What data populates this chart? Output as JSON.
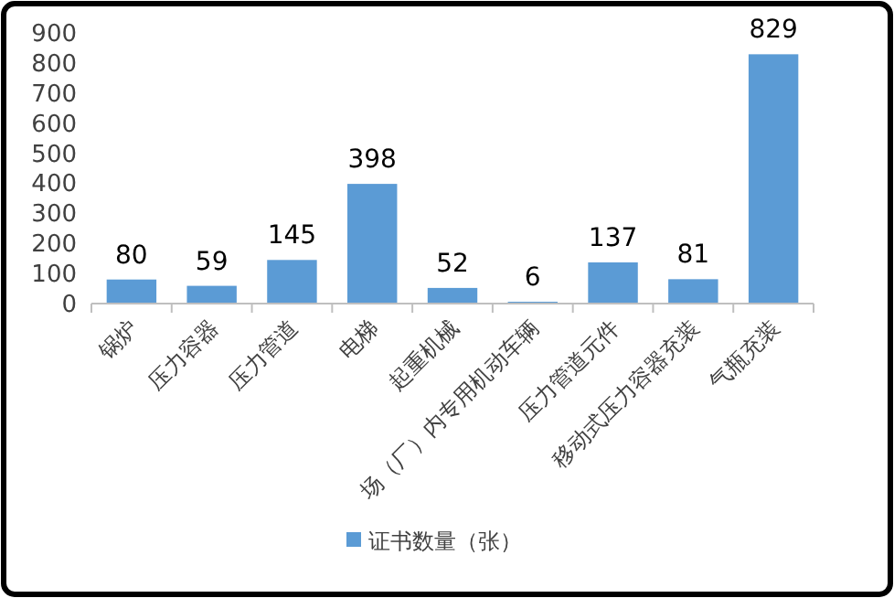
{
  "chart_data": {
    "type": "bar",
    "categories": [
      "锅炉",
      "压力容器",
      "压力管道",
      "电梯",
      "起重机械",
      "场（厂）内专用机动车辆",
      "压力管道元件",
      "移动式压力容器充装",
      "气瓶充装"
    ],
    "series": [
      {
        "name": "证书数量（张）",
        "color": "#5b9bd5",
        "values": [
          80,
          59,
          145,
          398,
          52,
          6,
          137,
          81,
          829
        ]
      }
    ],
    "ylim": [
      0,
      900
    ],
    "yticks": [
      0,
      100,
      200,
      300,
      400,
      500,
      600,
      700,
      800,
      900
    ],
    "data_labels": true,
    "legend": "bottom",
    "grid": false
  }
}
